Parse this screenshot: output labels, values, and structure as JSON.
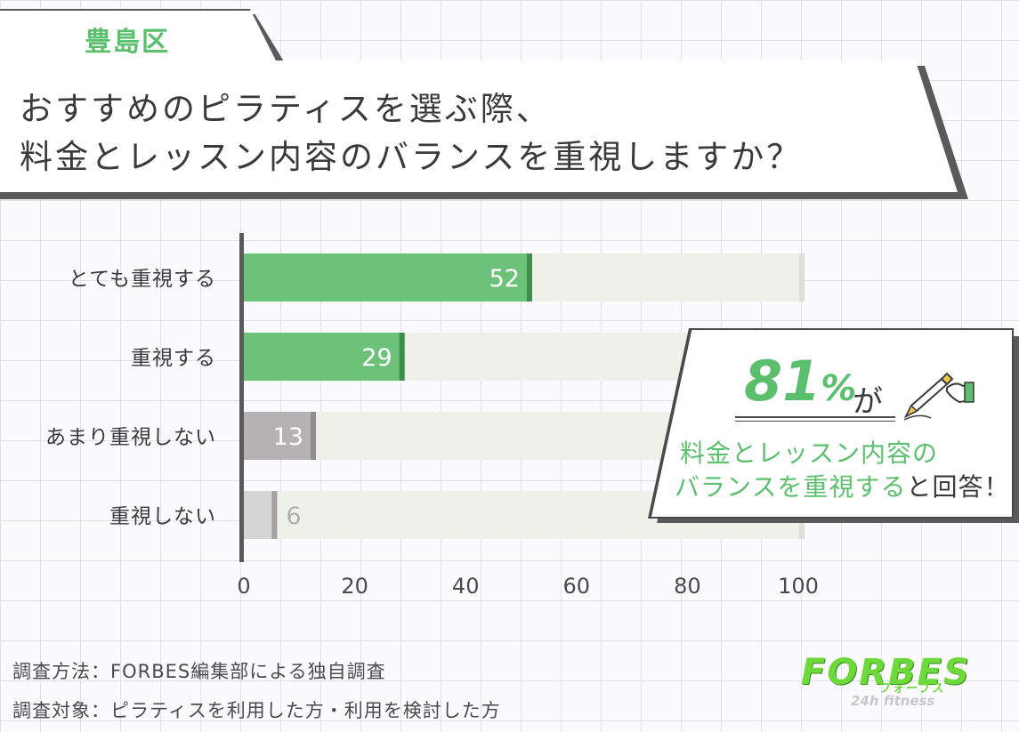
{
  "header": {
    "region_tag": "豊島区",
    "question_line1": "おすすめのピラティスを選ぶ際、",
    "question_line2": "料金とレッスン内容のバランスを重視しますか？"
  },
  "chart_data": {
    "type": "bar",
    "orientation": "horizontal",
    "categories": [
      "とても重視する",
      "重視する",
      "あまり重視しない",
      "重視しない"
    ],
    "values": [
      52,
      29,
      13,
      6
    ],
    "xlim": [
      0,
      100
    ],
    "xticks": [
      0,
      20,
      40,
      60,
      80,
      100
    ],
    "colors": {
      "highlight": "#6dc27a",
      "muted": "#b4b2b2",
      "background_track": "#eef0ea"
    },
    "highlighted_categories": [
      "とても重視する",
      "重視する"
    ]
  },
  "callout": {
    "percent": "81",
    "percent_sign": "%",
    "particle": "が",
    "line1": "料金とレッスン内容の",
    "line2_green": "バランスを重視する",
    "line2_dark": "と回答！"
  },
  "footer": {
    "method": "調査方法：FORBES編集部による独自調査",
    "target": "調査対象：ピラティスを利用した方・利用を検討した方"
  },
  "logo": {
    "main": "FORBES",
    "kana": "フォーブス",
    "sub": "24h fitness"
  },
  "icons": {
    "pencil": "pencil-icon"
  }
}
